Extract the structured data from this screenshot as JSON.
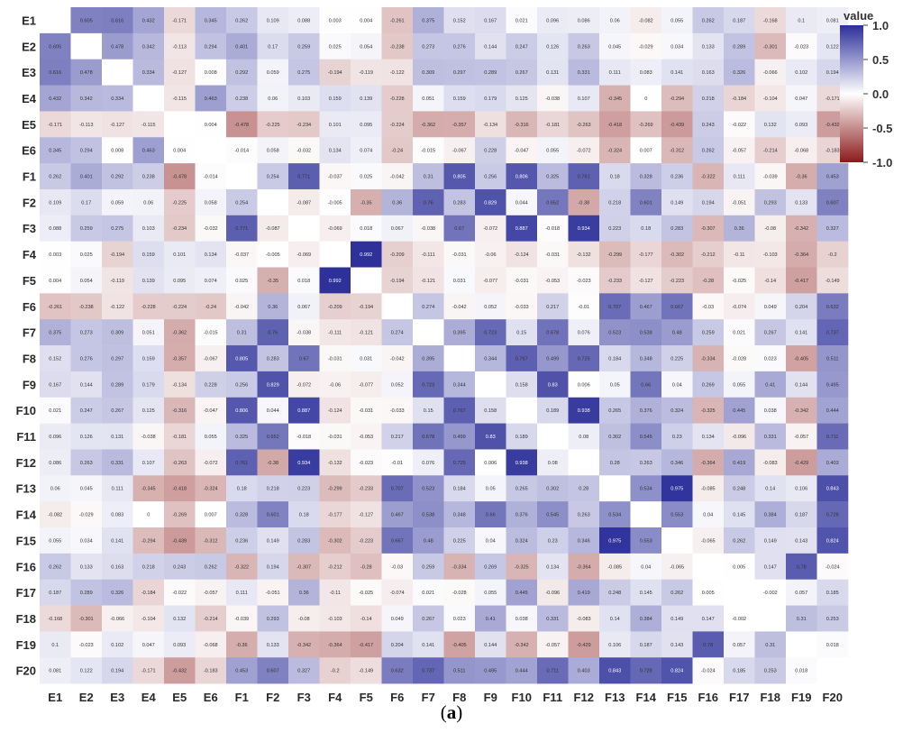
{
  "caption": {
    "open": "(",
    "letter": "a",
    "close": ")"
  },
  "chart_data": {
    "type": "heatmap",
    "variables": [
      "E1",
      "E2",
      "E3",
      "E4",
      "E5",
      "E6",
      "F1",
      "F2",
      "F3",
      "F4",
      "F5",
      "F6",
      "F7",
      "F8",
      "F9",
      "F10",
      "F11",
      "F12",
      "F13",
      "F14",
      "F15",
      "F16",
      "F17",
      "F18",
      "F19",
      "F20"
    ],
    "legend": {
      "title": "value",
      "ticks": [
        1.0,
        0.5,
        0.0,
        -0.5,
        -1.0
      ],
      "tick_labels": [
        "1.0",
        "0.5",
        "0.0",
        "-0.5",
        "-1.0"
      ],
      "placement": "top-right"
    },
    "color_scale": {
      "min": -1,
      "mid": 0,
      "max": 1,
      "low_color": "#8b1a1a",
      "mid_color": "#ffffff",
      "high_color": "#2c2f99"
    },
    "diagonal": "blank",
    "matrix": [
      [
        null,
        0.605,
        0.616,
        0.432,
        -0.171,
        0.345,
        0.262,
        0.109,
        0.088,
        0.003,
        0.004,
        -0.261,
        0.375,
        0.152,
        0.167,
        0.021,
        0.096,
        0.086,
        0.06,
        -0.082,
        0.055,
        0.262,
        0.187,
        -0.168,
        0.1,
        0.081
      ],
      [
        0.605,
        null,
        0.478,
        0.342,
        -0.113,
        0.294,
        0.401,
        0.17,
        0.259,
        0.025,
        0.054,
        -0.238,
        0.273,
        0.276,
        0.144,
        0.247,
        0.126,
        0.263,
        0.045,
        -0.029,
        0.034,
        0.133,
        0.289,
        -0.301,
        -0.023,
        0.122
      ],
      [
        0.616,
        0.478,
        null,
        0.334,
        -0.127,
        0.008,
        0.292,
        0.059,
        0.275,
        -0.194,
        -0.119,
        -0.122,
        0.309,
        0.297,
        0.289,
        0.267,
        0.131,
        0.331,
        0.111,
        0.083,
        0.141,
        0.163,
        0.326,
        -0.066,
        0.102,
        0.194
      ],
      [
        0.432,
        0.342,
        0.334,
        null,
        -0.115,
        0.463,
        0.238,
        0.06,
        0.103,
        0.159,
        0.139,
        -0.228,
        0.051,
        0.159,
        0.179,
        0.125,
        -0.038,
        0.107,
        -0.345,
        0,
        -0.294,
        0.218,
        -0.184,
        -0.104,
        0.047,
        -0.171
      ],
      [
        -0.171,
        -0.113,
        -0.127,
        -0.115,
        null,
        0.004,
        -0.478,
        -0.225,
        -0.234,
        0.101,
        0.095,
        -0.224,
        -0.362,
        -0.357,
        -0.134,
        -0.316,
        -0.181,
        -0.263,
        -0.418,
        -0.269,
        -0.439,
        0.243,
        -0.022,
        0.132,
        0.093,
        -0.432
      ],
      [
        0.345,
        0.294,
        0.008,
        0.463,
        0.004,
        null,
        -0.014,
        0.058,
        -0.032,
        0.134,
        0.074,
        -0.24,
        -0.015,
        -0.067,
        0.228,
        -0.047,
        0.055,
        -0.072,
        -0.324,
        0.007,
        -0.312,
        0.262,
        -0.057,
        -0.214,
        -0.068,
        -0.183
      ],
      [
        0.262,
        0.401,
        0.292,
        0.238,
        -0.478,
        -0.014,
        null,
        0.254,
        0.771,
        -0.037,
        0.025,
        -0.042,
        0.31,
        0.805,
        0.256,
        0.806,
        0.325,
        0.761,
        0.18,
        0.328,
        0.236,
        -0.322,
        0.111,
        -0.039,
        -0.36,
        0.453
      ],
      [
        0.109,
        0.17,
        0.059,
        0.06,
        -0.225,
        0.058,
        0.254,
        null,
        -0.087,
        -0.005,
        -0.35,
        0.36,
        0.76,
        0.283,
        0.829,
        0.044,
        0.652,
        -0.38,
        0.218,
        0.601,
        0.149,
        0.194,
        -0.051,
        0.293,
        0.133,
        0.607
      ],
      [
        0.088,
        0.259,
        0.275,
        0.103,
        -0.234,
        -0.032,
        0.771,
        -0.087,
        null,
        -0.069,
        0.018,
        0.067,
        -0.038,
        0.67,
        -0.072,
        0.887,
        -0.018,
        0.934,
        0.223,
        0.18,
        0.283,
        -0.307,
        0.36,
        -0.08,
        -0.342,
        0.327
      ],
      [
        0.003,
        0.025,
        -0.194,
        0.159,
        0.101,
        0.134,
        -0.037,
        -0.005,
        -0.069,
        null,
        0.992,
        -0.209,
        -0.111,
        -0.031,
        -0.06,
        -0.124,
        -0.031,
        -0.132,
        -0.299,
        -0.177,
        -0.302,
        -0.212,
        -0.11,
        -0.103,
        -0.364,
        -0.2
      ],
      [
        0.004,
        0.054,
        -0.119,
        0.139,
        0.095,
        0.074,
        0.025,
        -0.35,
        0.018,
        0.992,
        null,
        -0.194,
        -0.121,
        0.031,
        -0.077,
        -0.031,
        -0.053,
        -0.023,
        -0.233,
        -0.127,
        -0.223,
        -0.28,
        -0.025,
        -0.14,
        -0.417,
        -0.149
      ],
      [
        -0.261,
        -0.238,
        -0.122,
        -0.228,
        -0.224,
        -0.24,
        -0.042,
        0.36,
        0.067,
        -0.209,
        -0.194,
        null,
        0.274,
        -0.042,
        0.052,
        -0.033,
        0.217,
        -0.01,
        0.707,
        0.467,
        0.667,
        -0.03,
        -0.074,
        0.049,
        0.204,
        0.632
      ],
      [
        0.375,
        0.273,
        0.309,
        0.051,
        -0.362,
        -0.015,
        0.31,
        0.76,
        -0.038,
        -0.111,
        -0.121,
        0.274,
        null,
        0.395,
        0.723,
        0.15,
        0.678,
        0.076,
        0.523,
        0.538,
        0.48,
        0.259,
        0.021,
        0.267,
        0.141,
        0.737
      ],
      [
        0.152,
        0.276,
        0.297,
        0.159,
        -0.357,
        -0.067,
        0.805,
        0.283,
        0.67,
        -0.031,
        0.031,
        -0.042,
        0.395,
        null,
        0.344,
        0.767,
        0.499,
        0.725,
        0.184,
        0.348,
        0.225,
        -0.334,
        -0.028,
        0.023,
        -0.405,
        0.511
      ],
      [
        0.167,
        0.144,
        0.289,
        0.179,
        -0.134,
        0.228,
        0.256,
        0.829,
        -0.072,
        -0.06,
        -0.077,
        0.052,
        0.723,
        0.344,
        null,
        0.158,
        0.83,
        0.006,
        0.05,
        0.66,
        0.04,
        0.269,
        0.055,
        0.41,
        0.144,
        0.495
      ],
      [
        0.021,
        0.247,
        0.267,
        0.125,
        -0.316,
        -0.047,
        0.806,
        0.044,
        0.887,
        -0.124,
        -0.031,
        -0.033,
        0.15,
        0.767,
        0.158,
        null,
        0.189,
        0.938,
        0.265,
        0.376,
        0.324,
        -0.325,
        0.445,
        0.038,
        -0.342,
        0.444
      ],
      [
        0.096,
        0.126,
        0.131,
        -0.038,
        -0.181,
        0.055,
        0.325,
        0.652,
        -0.018,
        -0.031,
        -0.053,
        0.217,
        0.678,
        0.499,
        0.83,
        0.189,
        null,
        0.08,
        0.302,
        0.545,
        0.23,
        0.134,
        -0.096,
        0.331,
        -0.057,
        0.711
      ],
      [
        0.086,
        0.263,
        0.331,
        0.107,
        -0.263,
        -0.072,
        0.761,
        -0.38,
        0.934,
        -0.132,
        -0.023,
        -0.01,
        0.076,
        0.725,
        0.006,
        0.938,
        0.08,
        null,
        0.28,
        0.263,
        0.346,
        -0.364,
        0.419,
        -0.083,
        -0.429,
        0.403
      ],
      [
        0.06,
        0.045,
        0.111,
        -0.345,
        -0.418,
        -0.324,
        0.18,
        0.218,
        0.223,
        -0.299,
        -0.233,
        0.707,
        0.523,
        0.184,
        0.05,
        0.265,
        0.302,
        0.28,
        null,
        0.534,
        0.975,
        -0.085,
        0.248,
        0.14,
        0.106,
        0.843
      ],
      [
        -0.082,
        -0.029,
        0.083,
        0,
        -0.269,
        0.007,
        0.328,
        0.601,
        0.18,
        -0.177,
        -0.127,
        0.467,
        0.538,
        0.348,
        0.66,
        0.376,
        0.545,
        0.263,
        0.534,
        null,
        0.553,
        0.04,
        0.145,
        0.384,
        0.187,
        0.728
      ],
      [
        0.055,
        0.034,
        0.141,
        -0.294,
        -0.439,
        -0.312,
        0.236,
        0.149,
        0.283,
        -0.302,
        -0.223,
        0.667,
        0.48,
        0.225,
        0.04,
        0.324,
        0.23,
        0.346,
        0.975,
        0.553,
        null,
        -0.065,
        0.262,
        0.149,
        0.143,
        0.824
      ],
      [
        0.262,
        0.133,
        0.163,
        0.218,
        0.243,
        0.262,
        -0.322,
        0.194,
        -0.307,
        -0.212,
        -0.28,
        -0.03,
        0.259,
        -0.334,
        0.269,
        -0.325,
        0.134,
        -0.364,
        -0.085,
        0.04,
        -0.065,
        null,
        0.005,
        0.147,
        0.78,
        -0.024
      ],
      [
        0.187,
        0.289,
        0.326,
        -0.184,
        -0.022,
        -0.057,
        0.111,
        -0.051,
        0.36,
        -0.11,
        -0.025,
        -0.074,
        0.021,
        -0.028,
        0.055,
        0.445,
        -0.096,
        0.419,
        0.248,
        0.145,
        0.262,
        0.005,
        null,
        -0.002,
        0.057,
        0.185
      ],
      [
        -0.168,
        -0.301,
        -0.066,
        -0.104,
        0.132,
        -0.214,
        -0.039,
        0.293,
        -0.08,
        -0.103,
        -0.14,
        0.049,
        0.267,
        0.023,
        0.41,
        0.038,
        0.331,
        -0.083,
        0.14,
        0.384,
        0.149,
        0.147,
        -0.002,
        null,
        0.31,
        0.253
      ],
      [
        0.1,
        -0.023,
        0.102,
        0.047,
        0.093,
        -0.068,
        -0.36,
        0.133,
        -0.342,
        -0.364,
        -0.417,
        0.204,
        0.141,
        -0.405,
        0.144,
        -0.342,
        -0.057,
        -0.429,
        0.106,
        0.187,
        0.143,
        0.78,
        0.057,
        0.31,
        null,
        0.018
      ],
      [
        0.081,
        0.122,
        0.194,
        -0.171,
        -0.432,
        -0.183,
        0.453,
        0.607,
        0.327,
        -0.2,
        -0.149,
        0.632,
        0.737,
        0.511,
        0.495,
        0.444,
        0.711,
        0.403,
        0.843,
        0.728,
        0.824,
        -0.024,
        0.185,
        0.253,
        0.018,
        null
      ]
    ]
  }
}
